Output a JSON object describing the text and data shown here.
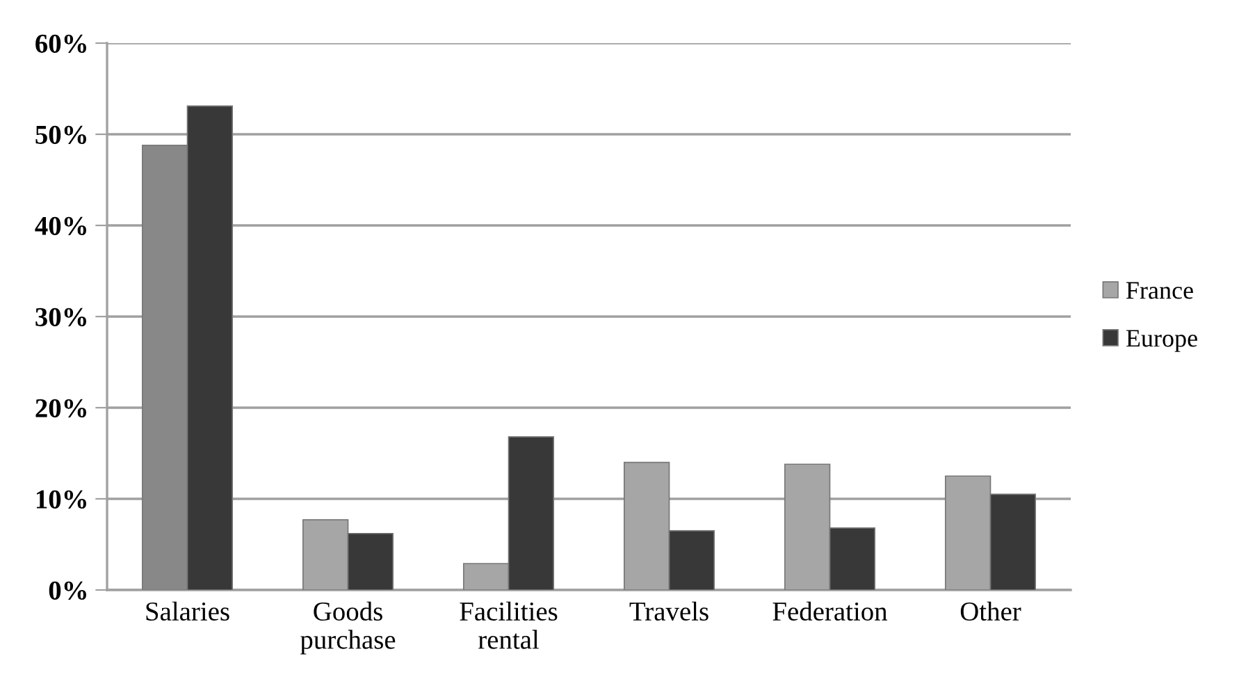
{
  "chart_data": {
    "type": "bar",
    "categories": [
      "Salaries",
      "Goods\npurchase",
      "Facilities\nrental",
      "Travels",
      "Federation",
      "Other"
    ],
    "series": [
      {
        "name": "France",
        "color": "#a6a6a6",
        "colors": [
          "#888888",
          "#a6a6a6",
          "#a6a6a6",
          "#a6a6a6",
          "#a6a6a6",
          "#a6a6a6"
        ],
        "values": [
          48.8,
          7.7,
          2.9,
          14.0,
          13.8,
          12.5
        ]
      },
      {
        "name": "Europe",
        "color": "#383838",
        "values": [
          53.1,
          6.2,
          16.8,
          6.5,
          6.8,
          10.5
        ]
      }
    ],
    "ylim": [
      0,
      60
    ],
    "yticks": [
      {
        "value": 0,
        "label": "0%"
      },
      {
        "value": 10,
        "label": "10%"
      },
      {
        "value": 20,
        "label": "20%"
      },
      {
        "value": 30,
        "label": "30%"
      },
      {
        "value": 40,
        "label": "40%"
      },
      {
        "value": 50,
        "label": "50%"
      },
      {
        "value": 60,
        "label": "60%"
      }
    ],
    "grid": "y",
    "legend": "right"
  }
}
